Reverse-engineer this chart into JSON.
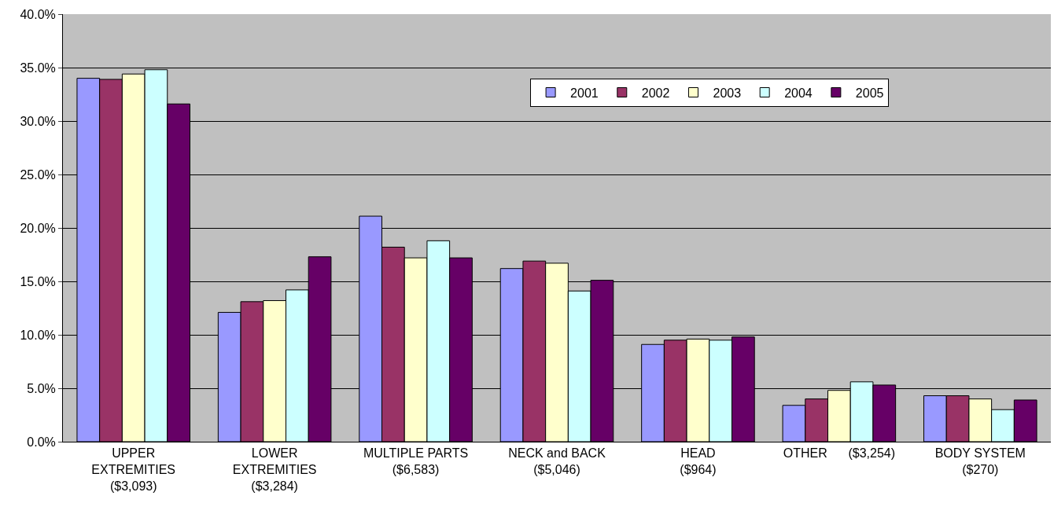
{
  "chart_data": {
    "type": "bar",
    "categories": [
      "UPPER\nEXTREMITIES\n($3,093)",
      "LOWER\nEXTREMITIES\n($3,284)",
      "MULTIPLE PARTS\n($6,583)",
      "NECK and BACK\n($5,046)",
      "HEAD\n($964)",
      "OTHER      ($3,254)",
      "BODY SYSTEM\n($270)"
    ],
    "series": [
      {
        "name": "2001",
        "color": "#9999ff",
        "values": [
          34.0,
          12.1,
          21.1,
          16.2,
          9.1,
          3.4,
          4.3
        ]
      },
      {
        "name": "2002",
        "color": "#993366",
        "values": [
          33.9,
          13.1,
          18.2,
          16.9,
          9.5,
          4.0,
          4.3
        ]
      },
      {
        "name": "2003",
        "color": "#ffffcc",
        "values": [
          34.4,
          13.2,
          17.2,
          16.7,
          9.6,
          4.8,
          4.0
        ]
      },
      {
        "name": "2004",
        "color": "#ccffff",
        "values": [
          34.8,
          14.2,
          18.8,
          14.1,
          9.5,
          5.6,
          3.0
        ]
      },
      {
        "name": "2005",
        "color": "#660066",
        "values": [
          31.6,
          17.3,
          17.2,
          15.1,
          9.8,
          5.3,
          3.9
        ]
      }
    ],
    "ylim": [
      0,
      40
    ],
    "yticks": [
      {
        "value": 0,
        "label": "0.0%"
      },
      {
        "value": 5,
        "label": "5.0%"
      },
      {
        "value": 10,
        "label": "10.0%"
      },
      {
        "value": 15,
        "label": "15.0%"
      },
      {
        "value": 20,
        "label": "20.0%"
      },
      {
        "value": 25,
        "label": "25.0%"
      },
      {
        "value": 30,
        "label": "30.0%"
      },
      {
        "value": 35,
        "label": "35.0%"
      },
      {
        "value": 40,
        "label": "40.0%"
      }
    ],
    "grid": "y",
    "legend": "top right"
  }
}
